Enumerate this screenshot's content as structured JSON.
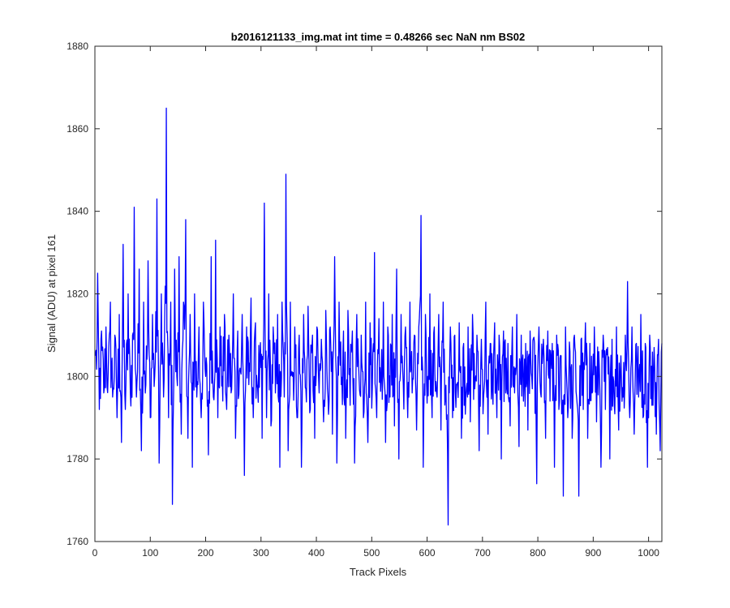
{
  "chart_data": {
    "type": "line",
    "title": "b2016121133_img.mat int time = 0.48266 sec  NaN nm BS02",
    "xlabel": "Track Pixels",
    "ylabel": "Signal (ADU) at pixel 161",
    "xlim": [
      0,
      1024
    ],
    "ylim": [
      1760,
      1880
    ],
    "x_ticks": [
      0,
      100,
      200,
      300,
      400,
      500,
      600,
      700,
      800,
      900,
      1000
    ],
    "y_ticks": [
      1760,
      1780,
      1800,
      1820,
      1840,
      1860,
      1880
    ],
    "grid": false,
    "series": [
      {
        "color": "#0000ff",
        "x_start": 1,
        "x_step": 1,
        "points": [
          [
            1,
            1805
          ],
          [
            5,
            1825
          ],
          [
            8,
            1792
          ],
          [
            12,
            1811
          ],
          [
            16,
            1796
          ],
          [
            20,
            1812
          ],
          [
            24,
            1801
          ],
          [
            28,
            1818
          ],
          [
            32,
            1795
          ],
          [
            36,
            1810
          ],
          [
            40,
            1790
          ],
          [
            44,
            1815
          ],
          [
            48,
            1784
          ],
          [
            51,
            1832
          ],
          [
            55,
            1792
          ],
          [
            60,
            1820
          ],
          [
            64,
            1796
          ],
          [
            68,
            1810
          ],
          [
            71,
            1841
          ],
          [
            75,
            1795
          ],
          [
            80,
            1826
          ],
          [
            84,
            1782
          ],
          [
            88,
            1818
          ],
          [
            92,
            1798
          ],
          [
            96,
            1828
          ],
          [
            100,
            1790
          ],
          [
            104,
            1815
          ],
          [
            108,
            1800
          ],
          [
            112,
            1843
          ],
          [
            116,
            1779
          ],
          [
            120,
            1820
          ],
          [
            124,
            1795
          ],
          [
            129,
            1865
          ],
          [
            133,
            1790
          ],
          [
            137,
            1818
          ],
          [
            140,
            1769
          ],
          [
            144,
            1826
          ],
          [
            148,
            1800
          ],
          [
            152,
            1829
          ],
          [
            156,
            1786
          ],
          [
            160,
            1818
          ],
          [
            164,
            1838
          ],
          [
            168,
            1785
          ],
          [
            172,
            1815
          ],
          [
            176,
            1778
          ],
          [
            180,
            1820
          ],
          [
            184,
            1795
          ],
          [
            188,
            1812
          ],
          [
            192,
            1790
          ],
          [
            196,
            1818
          ],
          [
            200,
            1800
          ],
          [
            205,
            1781
          ],
          [
            210,
            1829
          ],
          [
            214,
            1795
          ],
          [
            218,
            1833
          ],
          [
            222,
            1790
          ],
          [
            226,
            1812
          ],
          [
            230,
            1800
          ],
          [
            234,
            1815
          ],
          [
            238,
            1792
          ],
          [
            242,
            1810
          ],
          [
            246,
            1796
          ],
          [
            250,
            1820
          ],
          [
            254,
            1785
          ],
          [
            258,
            1811
          ],
          [
            262,
            1802
          ],
          [
            266,
            1815
          ],
          [
            270,
            1776
          ],
          [
            274,
            1812
          ],
          [
            278,
            1798
          ],
          [
            282,
            1819
          ],
          [
            286,
            1790
          ],
          [
            290,
            1813
          ],
          [
            294,
            1797
          ],
          [
            298,
            1805
          ],
          [
            302,
            1785
          ],
          [
            306,
            1842
          ],
          [
            310,
            1790
          ],
          [
            314,
            1820
          ],
          [
            318,
            1788
          ],
          [
            322,
            1812
          ],
          [
            326,
            1796
          ],
          [
            330,
            1815
          ],
          [
            334,
            1778
          ],
          [
            338,
            1818
          ],
          [
            342,
            1795
          ],
          [
            345,
            1849
          ],
          [
            349,
            1782
          ],
          [
            353,
            1818
          ],
          [
            357,
            1800
          ],
          [
            361,
            1812
          ],
          [
            365,
            1790
          ],
          [
            369,
            1810
          ],
          [
            373,
            1778
          ],
          [
            377,
            1815
          ],
          [
            381,
            1797
          ],
          [
            385,
            1817
          ],
          [
            389,
            1792
          ],
          [
            393,
            1810
          ],
          [
            397,
            1785
          ],
          [
            401,
            1812
          ],
          [
            405,
            1796
          ],
          [
            409,
            1809
          ],
          [
            413,
            1789
          ],
          [
            417,
            1816
          ],
          [
            421,
            1795
          ],
          [
            425,
            1812
          ],
          [
            429,
            1786
          ],
          [
            433,
            1829
          ],
          [
            437,
            1779
          ],
          [
            441,
            1818
          ],
          [
            445,
            1798
          ],
          [
            449,
            1811
          ],
          [
            453,
            1785
          ],
          [
            457,
            1816
          ],
          [
            461,
            1793
          ],
          [
            465,
            1811
          ],
          [
            469,
            1779
          ],
          [
            473,
            1815
          ],
          [
            477,
            1800
          ],
          [
            481,
            1810
          ],
          [
            485,
            1790
          ],
          [
            489,
            1818
          ],
          [
            493,
            1784
          ],
          [
            497,
            1813
          ],
          [
            501,
            1797
          ],
          [
            505,
            1830
          ],
          [
            509,
            1790
          ],
          [
            513,
            1814
          ],
          [
            517,
            1800
          ],
          [
            521,
            1818
          ],
          [
            525,
            1784
          ],
          [
            529,
            1812
          ],
          [
            533,
            1795
          ],
          [
            537,
            1815
          ],
          [
            541,
            1788
          ],
          [
            545,
            1826
          ],
          [
            549,
            1780
          ],
          [
            553,
            1815
          ],
          [
            557,
            1798
          ],
          [
            561,
            1812
          ],
          [
            565,
            1790
          ],
          [
            569,
            1818
          ],
          [
            573,
            1796
          ],
          [
            577,
            1810
          ],
          [
            581,
            1787
          ],
          [
            585,
            1812
          ],
          [
            589,
            1839
          ],
          [
            593,
            1778
          ],
          [
            597,
            1815
          ],
          [
            601,
            1800
          ],
          [
            605,
            1820
          ],
          [
            609,
            1790
          ],
          [
            613,
            1812
          ],
          [
            617,
            1796
          ],
          [
            621,
            1815
          ],
          [
            625,
            1787
          ],
          [
            629,
            1818
          ],
          [
            633,
            1795
          ],
          [
            638,
            1764
          ],
          [
            642,
            1812
          ],
          [
            646,
            1790
          ],
          [
            650,
            1810
          ],
          [
            654,
            1798
          ],
          [
            658,
            1813
          ],
          [
            662,
            1785
          ],
          [
            666,
            1808
          ],
          [
            670,
            1795
          ],
          [
            674,
            1812
          ],
          [
            678,
            1789
          ],
          [
            682,
            1815
          ],
          [
            686,
            1797
          ],
          [
            690,
            1810
          ],
          [
            694,
            1782
          ],
          [
            698,
            1809
          ],
          [
            702,
            1795
          ],
          [
            706,
            1818
          ],
          [
            710,
            1786
          ],
          [
            714,
            1808
          ],
          [
            718,
            1797
          ],
          [
            722,
            1813
          ],
          [
            726,
            1790
          ],
          [
            730,
            1810
          ],
          [
            734,
            1780
          ],
          [
            738,
            1811
          ],
          [
            742,
            1796
          ],
          [
            746,
            1808
          ],
          [
            750,
            1788
          ],
          [
            754,
            1812
          ],
          [
            758,
            1796
          ],
          [
            762,
            1815
          ],
          [
            766,
            1783
          ],
          [
            770,
            1810
          ],
          [
            774,
            1794
          ],
          [
            778,
            1808
          ],
          [
            782,
            1787
          ],
          [
            786,
            1811
          ],
          [
            790,
            1797
          ],
          [
            794,
            1808
          ],
          [
            798,
            1774
          ],
          [
            802,
            1812
          ],
          [
            806,
            1795
          ],
          [
            810,
            1809
          ],
          [
            814,
            1785
          ],
          [
            818,
            1811
          ],
          [
            822,
            1794
          ],
          [
            826,
            1808
          ],
          [
            830,
            1778
          ],
          [
            834,
            1810
          ],
          [
            838,
            1792
          ],
          [
            842,
            1805
          ],
          [
            846,
            1771
          ],
          [
            850,
            1812
          ],
          [
            854,
            1790
          ],
          [
            858,
            1806
          ],
          [
            862,
            1785
          ],
          [
            866,
            1810
          ],
          [
            870,
            1795
          ],
          [
            874,
            1771
          ],
          [
            878,
            1809
          ],
          [
            882,
            1792
          ],
          [
            886,
            1813
          ],
          [
            890,
            1785
          ],
          [
            894,
            1808
          ],
          [
            898,
            1796
          ],
          [
            902,
            1812
          ],
          [
            906,
            1789
          ],
          [
            910,
            1806
          ],
          [
            914,
            1778
          ],
          [
            918,
            1810
          ],
          [
            922,
            1792
          ],
          [
            926,
            1807
          ],
          [
            930,
            1780
          ],
          [
            934,
            1809
          ],
          [
            938,
            1793
          ],
          [
            942,
            1812
          ],
          [
            946,
            1787
          ],
          [
            950,
            1805
          ],
          [
            954,
            1795
          ],
          [
            958,
            1810
          ],
          [
            962,
            1823
          ],
          [
            966,
            1790
          ],
          [
            970,
            1812
          ],
          [
            974,
            1786
          ],
          [
            978,
            1808
          ],
          [
            982,
            1795
          ],
          [
            986,
            1815
          ],
          [
            990,
            1790
          ],
          [
            994,
            1808
          ],
          [
            998,
            1778
          ],
          [
            1002,
            1810
          ],
          [
            1006,
            1793
          ],
          [
            1010,
            1807
          ],
          [
            1014,
            1786
          ],
          [
            1018,
            1809
          ],
          [
            1021,
            1782
          ],
          [
            1024,
            1808
          ]
        ]
      }
    ]
  }
}
